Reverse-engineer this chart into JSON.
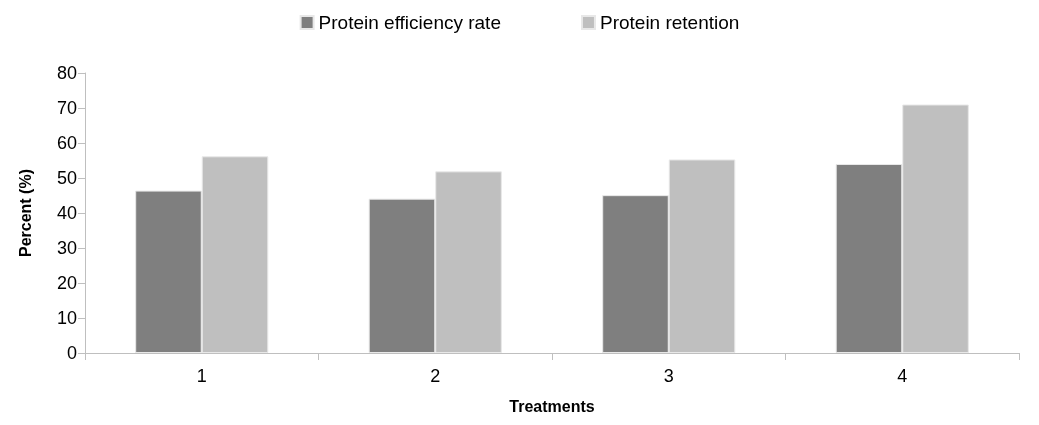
{
  "chart_data": {
    "type": "bar",
    "xlabel": "Treatments",
    "ylabel": "Percent (%)",
    "categories": [
      "1",
      "2",
      "3",
      "4"
    ],
    "series": [
      {
        "name": "Protein efficiency rate",
        "color": "#7f7f7f",
        "values": [
          46.4,
          44.1,
          45.1,
          54.0
        ]
      },
      {
        "name": "Protein retention",
        "color": "#bfbfbf",
        "values": [
          56.2,
          51.9,
          55.3,
          71.0
        ]
      }
    ],
    "ylim": [
      0,
      80
    ],
    "yticks": [
      0,
      10,
      20,
      30,
      40,
      50,
      60,
      70,
      80
    ],
    "grid": false,
    "legend": "top"
  }
}
